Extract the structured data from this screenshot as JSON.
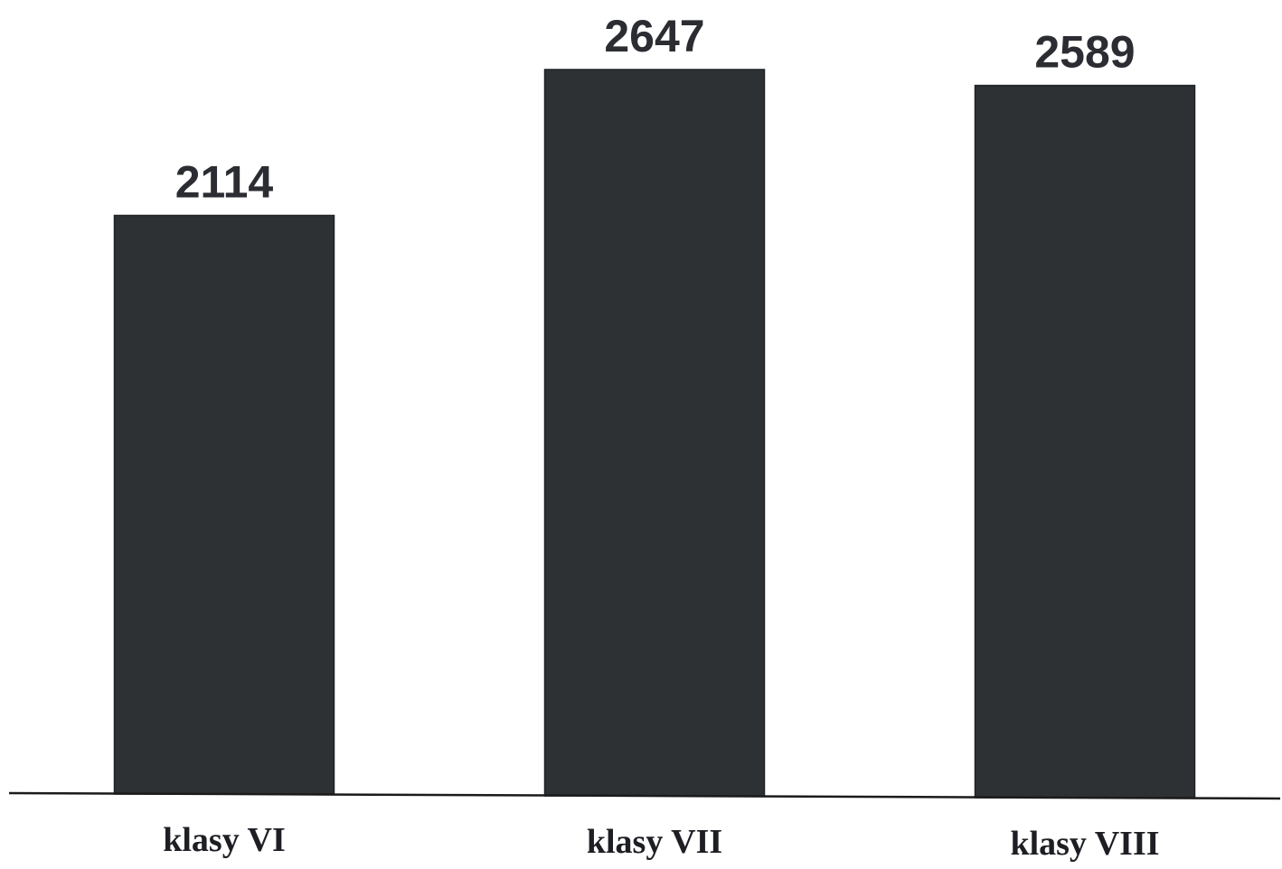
{
  "chart_data": {
    "type": "bar",
    "categories": [
      "klasy VI",
      "klasy VII",
      "klasy VIII"
    ],
    "values": [
      2114,
      2647,
      2589
    ],
    "data_labels": [
      "2114",
      "2647",
      "2589"
    ],
    "title": "",
    "xlabel": "",
    "ylabel": "",
    "ylim": [
      0,
      2647
    ],
    "grid": false,
    "legend": "none",
    "bar_color": "#2e3134",
    "axis_color": "#1b1b1b"
  }
}
